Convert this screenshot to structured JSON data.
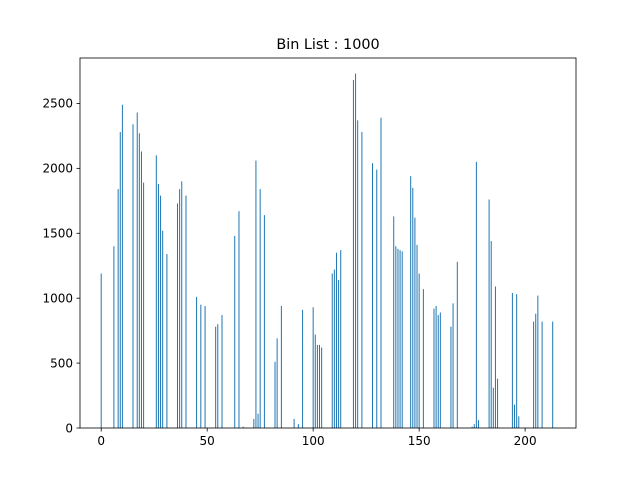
{
  "chart_data": {
    "type": "bar",
    "title": "Bin List : 1000",
    "xlabel": "",
    "ylabel": "",
    "xlim": [
      -10,
      224
    ],
    "ylim": [
      0,
      2850
    ],
    "xticks": [
      0,
      50,
      100,
      150,
      200
    ],
    "yticks": [
      0,
      500,
      1000,
      1500,
      2000,
      2500
    ],
    "grid": false,
    "legend": "none",
    "bar_color": "#1f77b4",
    "x": [
      0,
      6,
      8,
      9,
      10,
      15,
      17,
      18,
      19,
      20,
      26,
      27,
      28,
      29,
      31,
      36,
      37,
      38,
      40,
      45,
      47,
      49,
      54,
      55,
      57,
      63,
      65,
      67,
      72,
      73,
      74,
      75,
      77,
      82,
      83,
      85,
      91,
      93,
      95,
      100,
      101,
      102,
      103,
      104,
      109,
      110,
      111,
      112,
      113,
      119,
      120,
      121,
      123,
      128,
      130,
      132,
      138,
      139,
      140,
      141,
      142,
      146,
      147,
      148,
      149,
      150,
      152,
      157,
      158,
      159,
      160,
      165,
      166,
      168,
      175,
      176,
      177,
      178,
      183,
      184,
      185,
      186,
      187,
      194,
      195,
      196,
      197,
      204,
      205,
      206,
      208,
      213
    ],
    "values": [
      1190,
      1400,
      1840,
      2280,
      2490,
      2340,
      2430,
      2270,
      2130,
      1890,
      2100,
      1880,
      1790,
      1520,
      1340,
      1730,
      1840,
      1900,
      1790,
      1010,
      950,
      940,
      780,
      800,
      870,
      1480,
      1670,
      10,
      70,
      2060,
      110,
      1840,
      1640,
      510,
      690,
      940,
      70,
      30,
      910,
      930,
      720,
      640,
      640,
      620,
      1190,
      1220,
      1350,
      1140,
      1370,
      2680,
      2730,
      2370,
      2280,
      2040,
      1990,
      2390,
      1630,
      1400,
      1380,
      1370,
      1360,
      1940,
      1850,
      1620,
      1410,
      1190,
      1070,
      920,
      940,
      870,
      890,
      780,
      960,
      1280,
      10,
      30,
      2050,
      60,
      1760,
      1440,
      310,
      1090,
      380,
      1040,
      180,
      1030,
      90,
      820,
      880,
      1020,
      820,
      820
    ]
  }
}
